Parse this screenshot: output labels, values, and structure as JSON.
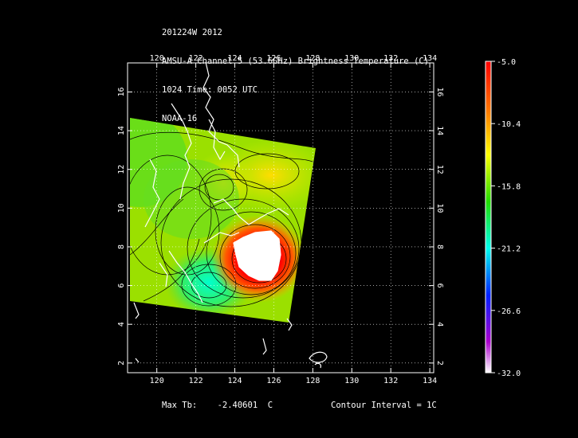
{
  "header": {
    "line1": "201224W 2012",
    "line2": "AMSU-A Channel 5 (53.6GHz) Brightness Temperature (C)",
    "line3": "1024 Time: 0052 UTC",
    "line4": "NOAA-16"
  },
  "map": {
    "lon_range": [
      118.5,
      134.2
    ],
    "lat_range": [
      1.5,
      17.5
    ],
    "lon_ticks": [
      "120",
      "122",
      "124",
      "126",
      "128",
      "130",
      "132",
      "134"
    ],
    "lat_ticks": [
      "2",
      "4",
      "6",
      "8",
      "10",
      "12",
      "14",
      "16"
    ],
    "grid": true
  },
  "colorbar": {
    "labels": [
      "-5.0",
      "-10.4",
      "-15.8",
      "-21.2",
      "-26.6",
      "-32.0"
    ],
    "colors": [
      "#ff0000",
      "#ff8800",
      "#ffff00",
      "#00dd00",
      "#00ffff",
      "#0000ff",
      "#cc00cc",
      "#ffffff"
    ]
  },
  "footer": {
    "max_label": "Max Tb:",
    "max_value": "-2.40601",
    "max_unit": "C",
    "contour": "Contour Interval = 1C"
  }
}
